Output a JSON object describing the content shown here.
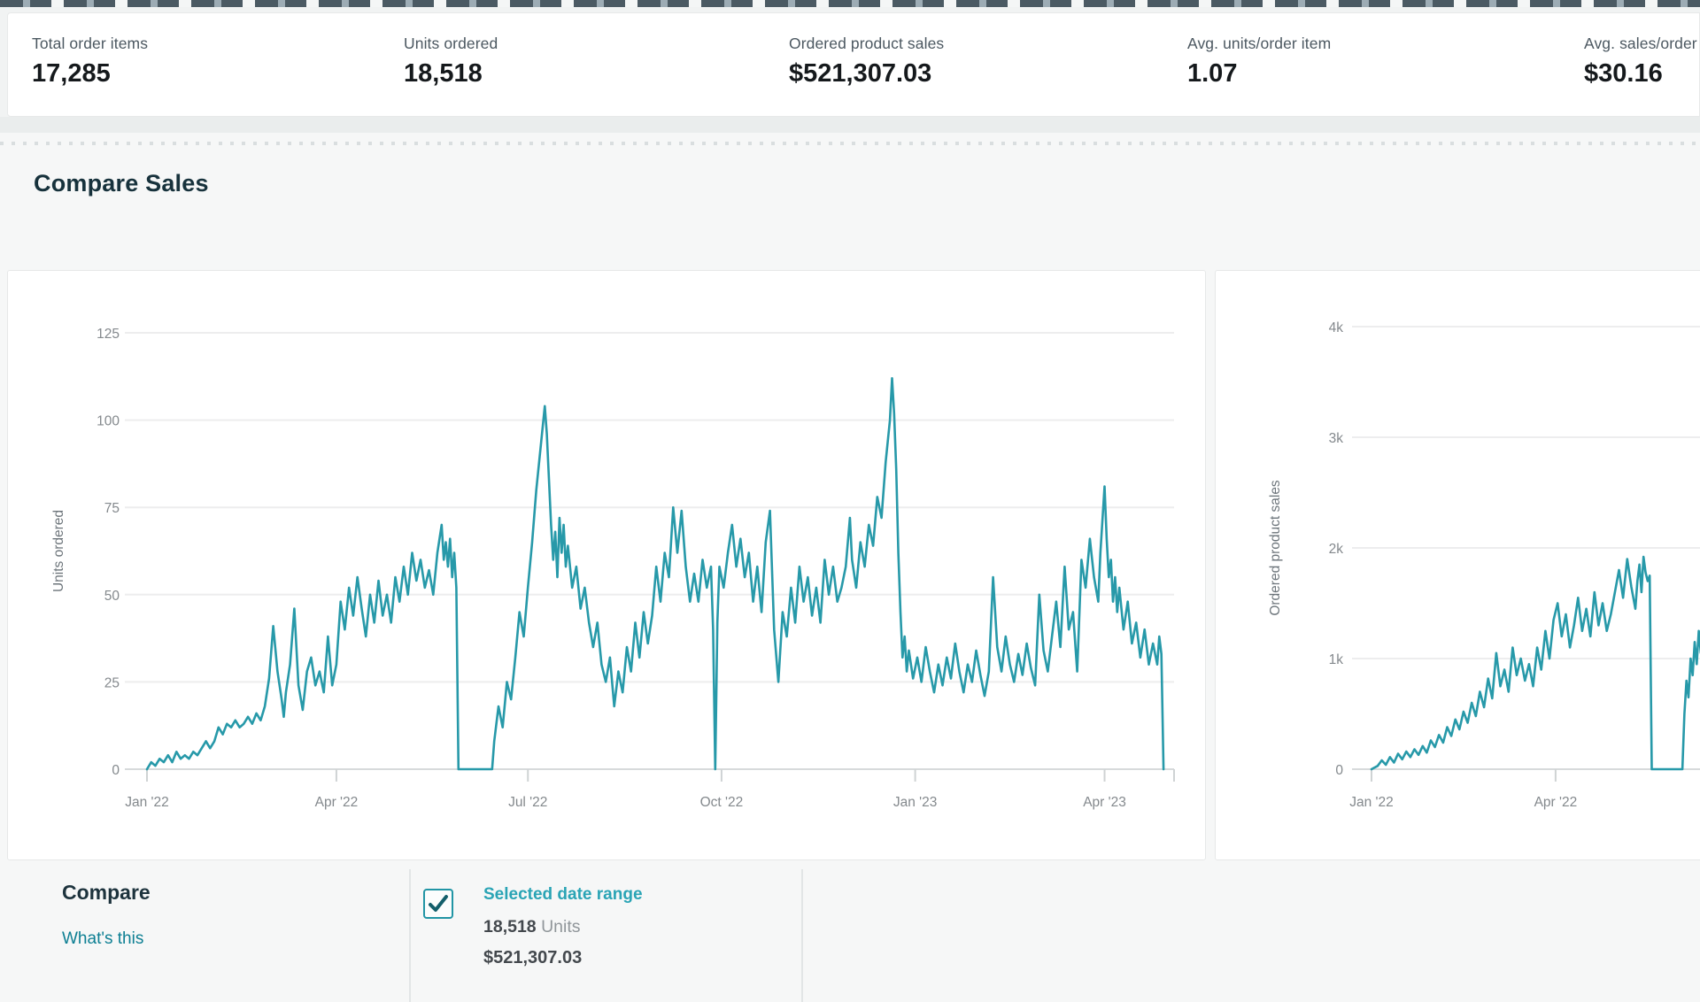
{
  "kpis": [
    {
      "label": "Total order items",
      "value": "17,285"
    },
    {
      "label": "Units ordered",
      "value": "18,518"
    },
    {
      "label": "Ordered product sales",
      "value": "$521,307.03"
    },
    {
      "label": "Avg. units/order item",
      "value": "1.07"
    },
    {
      "label": "Avg. sales/order item",
      "value": "$30.16"
    }
  ],
  "section": {
    "title": "Compare Sales"
  },
  "legend": {
    "compare_label": "Compare",
    "whats_this": "What's this",
    "item": {
      "checked": true,
      "label": "Selected date range",
      "units_value": "18,518",
      "units_suffix": " Units",
      "sales_value": "$521,307.03"
    }
  },
  "colors": {
    "line": "#2799a9",
    "link": "#0d7f93",
    "accent_teal": "#2aa4b5"
  },
  "chart_data": [
    {
      "type": "line",
      "y_axis_title": "Units ordered",
      "series_name": "Selected date range",
      "line_color": "#2799a9",
      "grid": true,
      "legend_position": "below",
      "ylim": [
        0,
        125
      ],
      "y_ticks": [
        0,
        25,
        50,
        75,
        100,
        125
      ],
      "y_tick_labels": [
        "0",
        "25",
        "50",
        "75",
        "100",
        "125"
      ],
      "x_unit": "days since 2022-01-01",
      "x_ticks": [
        {
          "d": 0,
          "label": "Jan '22"
        },
        {
          "d": 90,
          "label": "Apr '22"
        },
        {
          "d": 181,
          "label": "Jul '22"
        },
        {
          "d": 273,
          "label": "Oct '22"
        },
        {
          "d": 365,
          "label": "Jan '23"
        },
        {
          "d": 455,
          "label": "Apr '23"
        }
      ],
      "points": [
        [
          0,
          0
        ],
        [
          2,
          2
        ],
        [
          4,
          1
        ],
        [
          6,
          3
        ],
        [
          8,
          2
        ],
        [
          10,
          4
        ],
        [
          12,
          2
        ],
        [
          14,
          5
        ],
        [
          16,
          3
        ],
        [
          18,
          4
        ],
        [
          20,
          3
        ],
        [
          22,
          5
        ],
        [
          24,
          4
        ],
        [
          26,
          6
        ],
        [
          28,
          8
        ],
        [
          30,
          6
        ],
        [
          32,
          8
        ],
        [
          34,
          12
        ],
        [
          36,
          10
        ],
        [
          38,
          13
        ],
        [
          40,
          12
        ],
        [
          42,
          14
        ],
        [
          44,
          12
        ],
        [
          46,
          13
        ],
        [
          48,
          15
        ],
        [
          50,
          13
        ],
        [
          52,
          16
        ],
        [
          54,
          14
        ],
        [
          56,
          18
        ],
        [
          58,
          26
        ],
        [
          60,
          41
        ],
        [
          62,
          28
        ],
        [
          64,
          20
        ],
        [
          65,
          15
        ],
        [
          66,
          22
        ],
        [
          68,
          30
        ],
        [
          70,
          46
        ],
        [
          72,
          24
        ],
        [
          74,
          17
        ],
        [
          76,
          28
        ],
        [
          78,
          32
        ],
        [
          80,
          24
        ],
        [
          82,
          28
        ],
        [
          84,
          22
        ],
        [
          86,
          38
        ],
        [
          88,
          24
        ],
        [
          90,
          30
        ],
        [
          92,
          48
        ],
        [
          94,
          40
        ],
        [
          96,
          52
        ],
        [
          98,
          44
        ],
        [
          100,
          55
        ],
        [
          102,
          46
        ],
        [
          104,
          38
        ],
        [
          106,
          50
        ],
        [
          108,
          42
        ],
        [
          110,
          54
        ],
        [
          112,
          44
        ],
        [
          114,
          50
        ],
        [
          116,
          42
        ],
        [
          118,
          55
        ],
        [
          120,
          48
        ],
        [
          122,
          58
        ],
        [
          124,
          50
        ],
        [
          126,
          62
        ],
        [
          128,
          54
        ],
        [
          130,
          60
        ],
        [
          132,
          52
        ],
        [
          134,
          57
        ],
        [
          136,
          50
        ],
        [
          138,
          62
        ],
        [
          140,
          70
        ],
        [
          141,
          60
        ],
        [
          142,
          65
        ],
        [
          143,
          58
        ],
        [
          144,
          66
        ],
        [
          145,
          55
        ],
        [
          146,
          62
        ],
        [
          147,
          52
        ],
        [
          148,
          0
        ],
        [
          152,
          0
        ],
        [
          156,
          0
        ],
        [
          160,
          0
        ],
        [
          164,
          0
        ],
        [
          165,
          8
        ],
        [
          167,
          18
        ],
        [
          169,
          12
        ],
        [
          171,
          25
        ],
        [
          173,
          20
        ],
        [
          175,
          32
        ],
        [
          177,
          45
        ],
        [
          179,
          38
        ],
        [
          181,
          52
        ],
        [
          183,
          65
        ],
        [
          185,
          80
        ],
        [
          187,
          92
        ],
        [
          189,
          104
        ],
        [
          190,
          96
        ],
        [
          192,
          70
        ],
        [
          193,
          60
        ],
        [
          194,
          68
        ],
        [
          195,
          55
        ],
        [
          196,
          72
        ],
        [
          197,
          62
        ],
        [
          198,
          70
        ],
        [
          199,
          58
        ],
        [
          200,
          64
        ],
        [
          202,
          52
        ],
        [
          204,
          58
        ],
        [
          206,
          46
        ],
        [
          208,
          52
        ],
        [
          210,
          42
        ],
        [
          212,
          35
        ],
        [
          214,
          42
        ],
        [
          216,
          30
        ],
        [
          218,
          25
        ],
        [
          220,
          32
        ],
        [
          222,
          18
        ],
        [
          224,
          28
        ],
        [
          226,
          22
        ],
        [
          228,
          35
        ],
        [
          230,
          28
        ],
        [
          232,
          42
        ],
        [
          234,
          32
        ],
        [
          236,
          45
        ],
        [
          238,
          36
        ],
        [
          240,
          44
        ],
        [
          242,
          58
        ],
        [
          244,
          48
        ],
        [
          246,
          62
        ],
        [
          248,
          55
        ],
        [
          250,
          75
        ],
        [
          252,
          62
        ],
        [
          254,
          74
        ],
        [
          256,
          58
        ],
        [
          258,
          48
        ],
        [
          260,
          56
        ],
        [
          262,
          48
        ],
        [
          264,
          60
        ],
        [
          266,
          52
        ],
        [
          268,
          58
        ],
        [
          269,
          40
        ],
        [
          270,
          0
        ],
        [
          271,
          42
        ],
        [
          272,
          58
        ],
        [
          274,
          52
        ],
        [
          276,
          62
        ],
        [
          278,
          70
        ],
        [
          280,
          58
        ],
        [
          282,
          66
        ],
        [
          284,
          55
        ],
        [
          286,
          62
        ],
        [
          288,
          48
        ],
        [
          290,
          58
        ],
        [
          292,
          45
        ],
        [
          294,
          65
        ],
        [
          296,
          74
        ],
        [
          298,
          40
        ],
        [
          300,
          25
        ],
        [
          302,
          45
        ],
        [
          304,
          38
        ],
        [
          306,
          52
        ],
        [
          308,
          42
        ],
        [
          310,
          58
        ],
        [
          312,
          48
        ],
        [
          314,
          55
        ],
        [
          316,
          44
        ],
        [
          318,
          52
        ],
        [
          320,
          42
        ],
        [
          322,
          60
        ],
        [
          324,
          50
        ],
        [
          326,
          58
        ],
        [
          328,
          48
        ],
        [
          330,
          52
        ],
        [
          332,
          58
        ],
        [
          334,
          72
        ],
        [
          335,
          60
        ],
        [
          337,
          52
        ],
        [
          339,
          65
        ],
        [
          341,
          58
        ],
        [
          343,
          70
        ],
        [
          345,
          64
        ],
        [
          347,
          78
        ],
        [
          349,
          72
        ],
        [
          351,
          88
        ],
        [
          353,
          100
        ],
        [
          354,
          112
        ],
        [
          355,
          102
        ],
        [
          356,
          86
        ],
        [
          357,
          62
        ],
        [
          358,
          45
        ],
        [
          359,
          32
        ],
        [
          360,
          38
        ],
        [
          361,
          28
        ],
        [
          362,
          34
        ],
        [
          364,
          26
        ],
        [
          366,
          32
        ],
        [
          368,
          25
        ],
        [
          370,
          35
        ],
        [
          372,
          28
        ],
        [
          374,
          22
        ],
        [
          376,
          30
        ],
        [
          378,
          24
        ],
        [
          380,
          32
        ],
        [
          382,
          26
        ],
        [
          384,
          36
        ],
        [
          386,
          28
        ],
        [
          388,
          22
        ],
        [
          390,
          30
        ],
        [
          392,
          25
        ],
        [
          394,
          34
        ],
        [
          396,
          27
        ],
        [
          398,
          21
        ],
        [
          400,
          28
        ],
        [
          402,
          55
        ],
        [
          404,
          35
        ],
        [
          406,
          28
        ],
        [
          408,
          38
        ],
        [
          410,
          30
        ],
        [
          412,
          25
        ],
        [
          414,
          33
        ],
        [
          416,
          27
        ],
        [
          418,
          36
        ],
        [
          420,
          29
        ],
        [
          422,
          24
        ],
        [
          424,
          50
        ],
        [
          426,
          34
        ],
        [
          428,
          28
        ],
        [
          430,
          38
        ],
        [
          432,
          48
        ],
        [
          434,
          35
        ],
        [
          436,
          58
        ],
        [
          438,
          40
        ],
        [
          440,
          45
        ],
        [
          442,
          28
        ],
        [
          444,
          60
        ],
        [
          446,
          52
        ],
        [
          448,
          66
        ],
        [
          450,
          55
        ],
        [
          452,
          48
        ],
        [
          453,
          62
        ],
        [
          455,
          81
        ],
        [
          456,
          66
        ],
        [
          457,
          55
        ],
        [
          458,
          60
        ],
        [
          459,
          48
        ],
        [
          460,
          55
        ],
        [
          461,
          45
        ],
        [
          462,
          52
        ],
        [
          464,
          40
        ],
        [
          466,
          48
        ],
        [
          468,
          36
        ],
        [
          470,
          42
        ],
        [
          472,
          32
        ],
        [
          474,
          40
        ],
        [
          476,
          30
        ],
        [
          478,
          36
        ],
        [
          480,
          30
        ],
        [
          481,
          38
        ],
        [
          482,
          33
        ],
        [
          483,
          0
        ]
      ]
    },
    {
      "type": "line",
      "y_axis_title": "Ordered product sales",
      "series_name": "Selected date range",
      "line_color": "#2799a9",
      "grid": true,
      "legend_position": "below",
      "ylim": [
        0,
        4000
      ],
      "y_ticks": [
        0,
        1000,
        2000,
        3000,
        4000
      ],
      "y_tick_labels": [
        "0",
        "1k",
        "2k",
        "3k",
        "4k"
      ],
      "x_unit": "days since 2022-01-01",
      "x_ticks": [
        {
          "d": 0,
          "label": "Jan '22"
        },
        {
          "d": 90,
          "label": "Apr '22"
        }
      ],
      "points": [
        [
          0,
          0
        ],
        [
          3,
          30
        ],
        [
          5,
          80
        ],
        [
          7,
          40
        ],
        [
          9,
          110
        ],
        [
          11,
          60
        ],
        [
          13,
          140
        ],
        [
          15,
          90
        ],
        [
          17,
          160
        ],
        [
          19,
          110
        ],
        [
          21,
          180
        ],
        [
          23,
          130
        ],
        [
          25,
          210
        ],
        [
          27,
          150
        ],
        [
          29,
          260
        ],
        [
          31,
          200
        ],
        [
          33,
          310
        ],
        [
          35,
          240
        ],
        [
          37,
          380
        ],
        [
          39,
          300
        ],
        [
          41,
          450
        ],
        [
          43,
          360
        ],
        [
          45,
          520
        ],
        [
          47,
          420
        ],
        [
          49,
          600
        ],
        [
          51,
          480
        ],
        [
          53,
          700
        ],
        [
          55,
          560
        ],
        [
          57,
          820
        ],
        [
          59,
          640
        ],
        [
          61,
          1050
        ],
        [
          63,
          750
        ],
        [
          65,
          900
        ],
        [
          67,
          700
        ],
        [
          69,
          1100
        ],
        [
          71,
          850
        ],
        [
          73,
          1000
        ],
        [
          75,
          800
        ],
        [
          77,
          950
        ],
        [
          79,
          750
        ],
        [
          81,
          1100
        ],
        [
          83,
          900
        ],
        [
          85,
          1250
        ],
        [
          87,
          1000
        ],
        [
          89,
          1350
        ],
        [
          91,
          1500
        ],
        [
          93,
          1200
        ],
        [
          95,
          1400
        ],
        [
          97,
          1100
        ],
        [
          99,
          1300
        ],
        [
          101,
          1550
        ],
        [
          103,
          1250
        ],
        [
          105,
          1450
        ],
        [
          107,
          1200
        ],
        [
          109,
          1600
        ],
        [
          111,
          1300
        ],
        [
          113,
          1500
        ],
        [
          115,
          1250
        ],
        [
          117,
          1400
        ],
        [
          119,
          1600
        ],
        [
          121,
          1800
        ],
        [
          123,
          1550
        ],
        [
          125,
          1900
        ],
        [
          127,
          1650
        ],
        [
          129,
          1450
        ],
        [
          130,
          1700
        ],
        [
          131,
          1850
        ],
        [
          132,
          1600
        ],
        [
          133,
          1920
        ],
        [
          134,
          1780
        ],
        [
          135,
          1700
        ],
        [
          136,
          1750
        ],
        [
          137,
          0
        ],
        [
          141,
          0
        ],
        [
          145,
          0
        ],
        [
          149,
          0
        ],
        [
          152,
          0
        ],
        [
          153,
          500
        ],
        [
          154,
          800
        ],
        [
          155,
          650
        ],
        [
          156,
          1000
        ],
        [
          157,
          850
        ],
        [
          158,
          1150
        ],
        [
          159,
          950
        ],
        [
          160,
          1250
        ],
        [
          161,
          1050
        ],
        [
          162,
          1200
        ]
      ]
    }
  ]
}
